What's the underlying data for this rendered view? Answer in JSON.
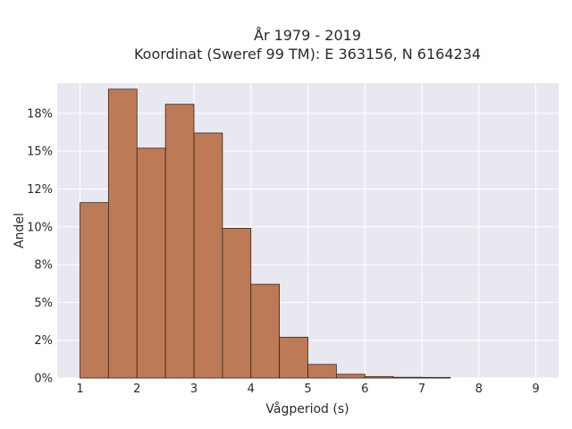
{
  "chart_data": {
    "type": "bar",
    "title": "År 1979 - 2019",
    "subtitle": "Koordinat (Sweref 99 TM): E 363156, N 6164234",
    "xlabel": "Vågperiod (s)",
    "ylabel": "Andel",
    "bin_width": 0.5,
    "bins": [
      {
        "start": 1.0,
        "value": 11.6
      },
      {
        "start": 1.5,
        "value": 19.1
      },
      {
        "start": 2.0,
        "value": 15.2
      },
      {
        "start": 2.5,
        "value": 18.1
      },
      {
        "start": 3.0,
        "value": 16.2
      },
      {
        "start": 3.5,
        "value": 9.9
      },
      {
        "start": 4.0,
        "value": 6.2
      },
      {
        "start": 4.5,
        "value": 2.7
      },
      {
        "start": 5.0,
        "value": 0.9
      },
      {
        "start": 5.5,
        "value": 0.25
      },
      {
        "start": 6.0,
        "value": 0.1
      },
      {
        "start": 6.5,
        "value": 0.05
      },
      {
        "start": 7.0,
        "value": 0.04
      }
    ],
    "xlim": [
      0.6,
      9.4
    ],
    "ylim": [
      0,
      19.5
    ],
    "x_ticks": [
      "1",
      "2",
      "3",
      "4",
      "5",
      "6",
      "7",
      "8",
      "9"
    ],
    "y_ticks": [
      {
        "value": 0,
        "label": "0%"
      },
      {
        "value": 2.5,
        "label": "2%"
      },
      {
        "value": 5,
        "label": "5%"
      },
      {
        "value": 7.5,
        "label": "8%"
      },
      {
        "value": 10,
        "label": "10%"
      },
      {
        "value": 12.5,
        "label": "12%"
      },
      {
        "value": 15,
        "label": "15%"
      },
      {
        "value": 17.5,
        "label": "18%"
      }
    ],
    "grid": true,
    "colors": {
      "bar": "#bd7a56",
      "bar_edge": "#3b2414",
      "plot_bg": "#e8e8f1",
      "grid": "#ffffff"
    }
  }
}
